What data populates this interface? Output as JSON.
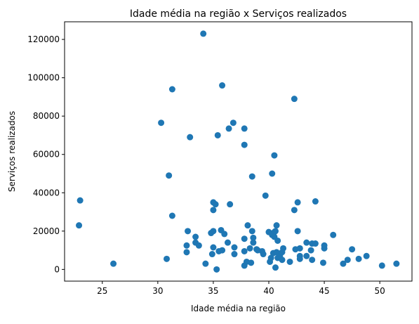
{
  "chart_data": {
    "type": "scatter",
    "title": "Idade média na região x Serviços realizados",
    "xlabel": "Idade média na região",
    "ylabel": "Serviços realizados",
    "xlim": [
      21.6,
      52.9
    ],
    "ylim": [
      -6100,
      129200
    ],
    "x_ticks": [
      25,
      30,
      35,
      40,
      45,
      50
    ],
    "y_ticks": [
      0,
      20000,
      40000,
      60000,
      80000,
      100000,
      120000
    ],
    "x_tick_labels": [
      "25",
      "30",
      "35",
      "40",
      "45",
      "50"
    ],
    "y_tick_labels": [
      "0",
      "20000",
      "40000",
      "60000",
      "80000",
      "100000",
      "120000"
    ],
    "grid": false,
    "marker_color": "#1f77b4",
    "series": [
      {
        "points": [
          [
            22.9,
            23000
          ],
          [
            23.0,
            36000
          ],
          [
            26.0,
            3000
          ],
          [
            30.3,
            76500
          ],
          [
            30.8,
            5500
          ],
          [
            31.0,
            49000
          ],
          [
            31.3,
            94000
          ],
          [
            31.3,
            28000
          ],
          [
            32.7,
            20000
          ],
          [
            32.6,
            12500
          ],
          [
            32.6,
            9000
          ],
          [
            32.9,
            69000
          ],
          [
            33.4,
            17000
          ],
          [
            33.4,
            14000
          ],
          [
            33.7,
            12500
          ],
          [
            34.1,
            123000
          ],
          [
            34.3,
            3000
          ],
          [
            34.8,
            19000
          ],
          [
            34.9,
            8000
          ],
          [
            35.0,
            11500
          ],
          [
            35.0,
            20000
          ],
          [
            35.0,
            31000
          ],
          [
            35.0,
            35000
          ],
          [
            35.2,
            34000
          ],
          [
            35.3,
            0
          ],
          [
            35.4,
            70000
          ],
          [
            35.5,
            9500
          ],
          [
            35.7,
            20500
          ],
          [
            35.8,
            96000
          ],
          [
            35.8,
            10000
          ],
          [
            36.0,
            18500
          ],
          [
            36.3,
            14000
          ],
          [
            36.4,
            73500
          ],
          [
            36.5,
            34000
          ],
          [
            36.8,
            76500
          ],
          [
            36.9,
            11500
          ],
          [
            36.9,
            8000
          ],
          [
            37.8,
            73500
          ],
          [
            37.8,
            65000
          ],
          [
            37.8,
            16000
          ],
          [
            37.8,
            9500
          ],
          [
            37.8,
            2000
          ],
          [
            38.0,
            4000
          ],
          [
            38.1,
            23000
          ],
          [
            38.3,
            11000
          ],
          [
            38.4,
            3500
          ],
          [
            38.5,
            48500
          ],
          [
            38.5,
            20000
          ],
          [
            38.6,
            16500
          ],
          [
            38.6,
            14000
          ],
          [
            38.9,
            10500
          ],
          [
            39.0,
            10000
          ],
          [
            39.4,
            9500
          ],
          [
            39.5,
            8000
          ],
          [
            39.7,
            38500
          ],
          [
            40.0,
            19500
          ],
          [
            40.1,
            4000
          ],
          [
            40.2,
            6000
          ],
          [
            40.3,
            50000
          ],
          [
            40.3,
            18000
          ],
          [
            40.4,
            8500
          ],
          [
            40.5,
            19500
          ],
          [
            40.5,
            17000
          ],
          [
            40.5,
            59500
          ],
          [
            40.6,
            20000
          ],
          [
            40.6,
            1000
          ],
          [
            40.7,
            23000
          ],
          [
            40.7,
            9000
          ],
          [
            40.8,
            15000
          ],
          [
            40.8,
            6000
          ],
          [
            41.0,
            7000
          ],
          [
            41.2,
            5000
          ],
          [
            41.2,
            9000
          ],
          [
            41.3,
            11000
          ],
          [
            41.9,
            4000
          ],
          [
            42.3,
            89000
          ],
          [
            42.3,
            31000
          ],
          [
            42.4,
            10500
          ],
          [
            42.6,
            35000
          ],
          [
            42.6,
            20000
          ],
          [
            42.8,
            11000
          ],
          [
            42.8,
            7000
          ],
          [
            42.8,
            5500
          ],
          [
            43.4,
            14000
          ],
          [
            43.4,
            7000
          ],
          [
            43.8,
            10000
          ],
          [
            43.9,
            13500
          ],
          [
            43.9,
            5000
          ],
          [
            44.2,
            35500
          ],
          [
            44.2,
            13500
          ],
          [
            44.9,
            3500
          ],
          [
            45.0,
            11000
          ],
          [
            45.0,
            12500
          ],
          [
            45.8,
            18000
          ],
          [
            46.7,
            3000
          ],
          [
            47.1,
            5000
          ],
          [
            47.5,
            10500
          ],
          [
            48.1,
            5500
          ],
          [
            48.8,
            7000
          ],
          [
            50.2,
            2000
          ],
          [
            51.5,
            3000
          ]
        ]
      }
    ]
  }
}
